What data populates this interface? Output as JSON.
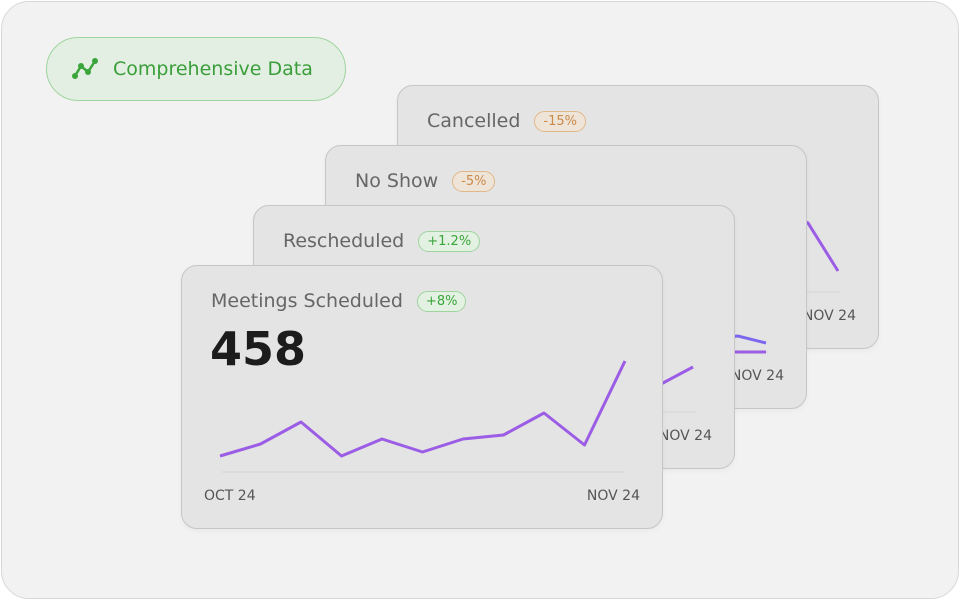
{
  "badge": {
    "label": "Comprehensive Data"
  },
  "cards": [
    {
      "title": "Cancelled",
      "change": "-15%",
      "end_label": "NOV 24"
    },
    {
      "title": "No Show",
      "change": "-5%",
      "end_label": "NOV 24"
    },
    {
      "title": "Rescheduled",
      "change": "+1.2%",
      "end_label": "NOV 24"
    },
    {
      "title": "Meetings Scheduled",
      "change": "+8%",
      "total": 458,
      "start_label": "OCT 24",
      "end_label": "NOV 24",
      "line_values": [
        17,
        29,
        51,
        17,
        34,
        21,
        34,
        38,
        60,
        28,
        112
      ],
      "line_color": "#9b5de5"
    }
  ]
}
